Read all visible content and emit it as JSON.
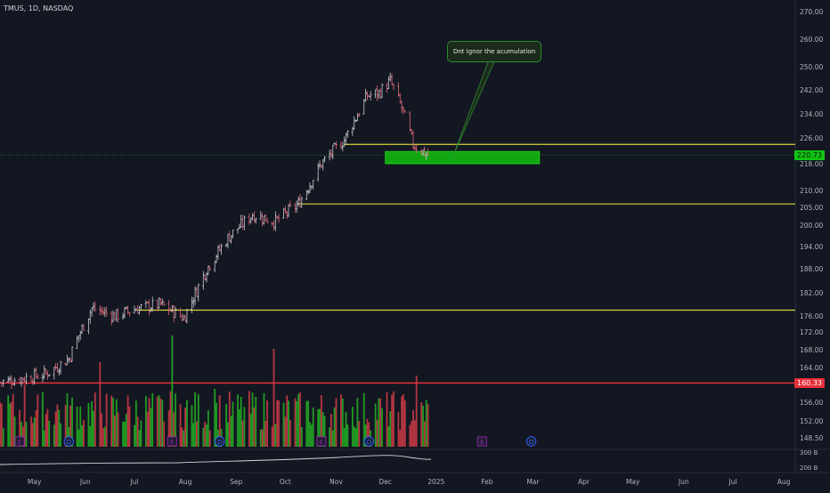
{
  "header": {
    "symbol_line": "TMUS, 1D, NASDAQ"
  },
  "annotation": {
    "text": "Dnt Ignor the acumulation"
  },
  "price_axis": {
    "ticks": [
      "270.00",
      "260.00",
      "250.00",
      "242.00",
      "234.00",
      "226.00",
      "218.00",
      "210.00",
      "205.00",
      "200.00",
      "194.00",
      "188.00",
      "182.00",
      "176.00",
      "172.00",
      "168.00",
      "164.00",
      "160.00",
      "156.00",
      "152.00",
      "148.50"
    ],
    "current_price": "220.73",
    "red_level": "160.33"
  },
  "volume_axis": {
    "ticks": [
      "300 B",
      "200 B"
    ]
  },
  "time_axis": {
    "ticks": [
      "May",
      "Jun",
      "Jul",
      "Aug",
      "Sep",
      "Oct",
      "Nov",
      "Dec",
      "2025",
      "Feb",
      "Mar",
      "Apr",
      "May",
      "Jun",
      "Jul",
      "Aug"
    ]
  },
  "event_markers": [
    {
      "label": "E",
      "type": "earnings",
      "month": "Apr"
    },
    {
      "label": "D",
      "type": "dividend",
      "month": "May"
    },
    {
      "label": "E",
      "type": "earnings",
      "month": "Jul"
    },
    {
      "label": "D",
      "type": "dividend",
      "month": "Aug"
    },
    {
      "label": "E",
      "type": "earnings",
      "month": "Oct"
    },
    {
      "label": "D",
      "type": "dividend",
      "month": "Nov"
    },
    {
      "label": "E",
      "type": "earnings",
      "month": "Jan"
    },
    {
      "label": "D",
      "type": "dividend",
      "month": "Feb"
    }
  ],
  "colors": {
    "background": "#131722",
    "up": "#22ab22",
    "down": "#d83a45",
    "support_line": "#d6d43a",
    "zone": "#12a612",
    "red_line": "#e5303a",
    "earnings": "#8e24aa",
    "dividend": "#2962ff"
  },
  "chart_data": {
    "type": "line",
    "x_start": "2024-04-10",
    "x_end": "2025-08-08",
    "series": [
      {
        "kind": "close",
        "points": [
          [
            "2024-04-10",
            160.5
          ],
          [
            "2024-04-24",
            161.5
          ],
          [
            "2024-05-08",
            162.5
          ],
          [
            "2024-05-22",
            166.0
          ],
          [
            "2024-06-05",
            178.0
          ],
          [
            "2024-06-19",
            176.0
          ],
          [
            "2024-07-03",
            178.0
          ],
          [
            "2024-07-17",
            179.0
          ],
          [
            "2024-07-31",
            175.5
          ],
          [
            "2024-08-14",
            188.0
          ],
          [
            "2024-08-28",
            197.0
          ],
          [
            "2024-09-11",
            203.0
          ],
          [
            "2024-09-25",
            201.0
          ],
          [
            "2024-10-09",
            206.0
          ],
          [
            "2024-10-23",
            218.0
          ],
          [
            "2024-11-06",
            225.5
          ],
          [
            "2024-11-20",
            240.0
          ],
          [
            "2024-11-27",
            241.0
          ],
          [
            "2024-12-04",
            245.0
          ],
          [
            "2024-12-11",
            236.0
          ],
          [
            "2024-12-18",
            224.0
          ],
          [
            "2024-12-27",
            220.7
          ]
        ]
      }
    ],
    "levels": [
      {
        "price": 224.0,
        "from": "2024-11-06",
        "to": "2025-08-08",
        "kind": "support"
      },
      {
        "price": 206.0,
        "from": "2024-10-09",
        "to": "2025-08-08",
        "kind": "support"
      },
      {
        "price": 177.5,
        "from": "2024-07-03",
        "to": "2025-08-08",
        "kind": "support"
      },
      {
        "price": 160.33,
        "from": "2024-04-10",
        "to": "2025-08-08",
        "kind": "red"
      }
    ],
    "zone": {
      "price_low": 218.0,
      "price_high": 221.8,
      "from": "2024-12-01",
      "to": "2025-03-05"
    },
    "volume_range": "200 B – 300 B",
    "ylabel": "",
    "ylim": [
      146,
      272
    ],
    "grid": false,
    "legend": "none"
  }
}
